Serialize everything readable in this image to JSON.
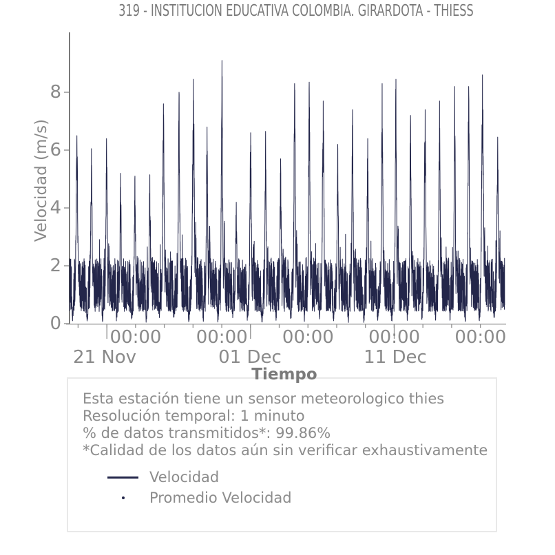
{
  "title": "319 - INSTITUCION EDUCATIVA COLOMBIA. GIRARDOTA - THIESS",
  "colors": {
    "series_navy": "#23264a",
    "text_gray": "#8a8a8a",
    "title_gray": "#7a7a7a",
    "left_spine": "#4d4d4d",
    "axis_line": "#a0a0a0",
    "tick_mark": "#909090",
    "box_border": "#e9e9e9",
    "background": "#ffffff"
  },
  "chart_data": {
    "type": "line",
    "title": "319 - INSTITUCION EDUCATIVA COLOMBIA. GIRARDOTA - THIESS",
    "xlabel": "Tiempo",
    "ylabel": "Velocidad (m/s)",
    "ylim": [
      0,
      10.1
    ],
    "yticks": [
      0,
      2,
      4,
      6,
      8
    ],
    "grid": false,
    "legend_position": "inside-bottom-box",
    "x_minor_tick_labels": [
      "00:00",
      "00:00",
      "00:00",
      "00:00",
      "00:00"
    ],
    "x_date_labels": [
      "21 Nov",
      "01 Dec",
      "11 Dec"
    ],
    "x_span_days": 30,
    "resolution": "1 minuto",
    "series": [
      {
        "name": "Velocidad",
        "style": "line",
        "color": "#23264a",
        "units": "m/s",
        "night_band_range_ms": [
          0.4,
          2.5
        ],
        "daily_peak_values_ms": [
          6.5,
          6.05,
          6.4,
          5.2,
          5.1,
          5.15,
          7.6,
          8.0,
          8.45,
          6.8,
          9.1,
          4.2,
          6.6,
          6.65,
          5.7,
          8.3,
          8.35,
          7.7,
          6.2,
          7.4,
          6.4,
          8.3,
          8.45,
          7.2,
          7.4,
          7.7,
          8.2,
          8.2,
          8.6,
          6.45
        ]
      },
      {
        "name": "Promedio Velocidad",
        "style": "dots",
        "color": "#23264a"
      }
    ]
  },
  "infobox": {
    "lines": [
      "Esta estación tiene un sensor meteorologico thies",
      "Resolución temporal: 1 minuto",
      "% de datos transmitidos*: 99.86%",
      "*Calidad de los datos aún sin verificar exhaustivamente"
    ],
    "transmitted_percent": "99.86%",
    "legend": [
      {
        "label": "Velocidad",
        "marker": "line"
      },
      {
        "label": "Promedio Velocidad",
        "marker": "dot"
      }
    ]
  }
}
